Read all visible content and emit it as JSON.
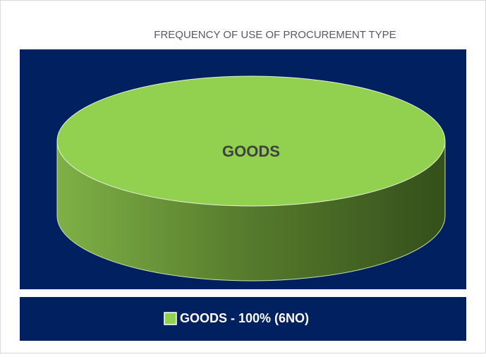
{
  "chart_data": {
    "type": "pie",
    "title": "FREQUENCY OF USE OF PROCUREMENT TYPE",
    "categories": [
      "GOODS"
    ],
    "values": [
      100
    ],
    "colors": [
      "#92d050"
    ],
    "legend_labels": [
      "GOODS - 100% (6NO)"
    ],
    "legend": "bottom"
  }
}
